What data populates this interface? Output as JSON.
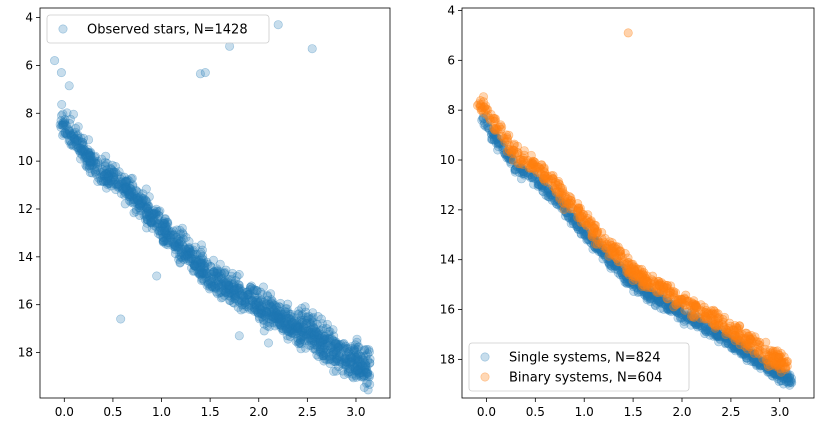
{
  "colors": {
    "blue": "#1f77b4",
    "orange": "#ff7f0e"
  },
  "chart_data": [
    {
      "type": "scatter",
      "title": "",
      "xlabel": "",
      "ylabel": "",
      "xlim": [
        -0.25,
        3.35
      ],
      "ylim": [
        19.9,
        3.6
      ],
      "y_inverted": true,
      "xticks": [
        "0.0",
        "0.5",
        "1.0",
        "1.5",
        "2.0",
        "2.5",
        "3.0"
      ],
      "yticks": [
        "4",
        "6",
        "8",
        "10",
        "12",
        "14",
        "16",
        "18"
      ],
      "legend_position": "upper-left",
      "series": [
        {
          "name": "Observed stars, N=1428",
          "color": "#1f77b4",
          "alpha": 0.25,
          "distribution": "main-sequence band, dense",
          "outliers": [
            [
              -0.1,
              5.8
            ],
            [
              -0.03,
              6.3
            ],
            [
              0.05,
              6.85
            ],
            [
              1.4,
              6.35
            ],
            [
              1.45,
              6.3
            ],
            [
              1.7,
              5.2
            ],
            [
              2.2,
              4.3
            ],
            [
              2.55,
              5.3
            ],
            [
              0.95,
              14.8
            ],
            [
              0.58,
              16.6
            ],
            [
              1.8,
              17.3
            ],
            [
              2.1,
              17.6
            ],
            [
              2.7,
              18.3
            ]
          ]
        }
      ]
    },
    {
      "type": "scatter",
      "title": "",
      "xlabel": "",
      "ylabel": "",
      "xlim": [
        -0.25,
        3.35
      ],
      "ylim": [
        19.55,
        3.9
      ],
      "y_inverted": true,
      "xticks": [
        "0.0",
        "0.5",
        "1.0",
        "1.5",
        "2.0",
        "2.5",
        "3.0"
      ],
      "yticks": [
        "4",
        "6",
        "8",
        "10",
        "12",
        "14",
        "16",
        "18"
      ],
      "legend_position": "lower-left",
      "series": [
        {
          "name": "Single systems, N=824",
          "color": "#1f77b4",
          "alpha": 0.25,
          "distribution": "tight main sequence"
        },
        {
          "name": "Binary systems, N=604",
          "color": "#ff7f0e",
          "alpha": 0.3,
          "distribution": "main sequence offset brighter",
          "outliers": [
            [
              1.45,
              4.9
            ]
          ]
        }
      ]
    }
  ]
}
